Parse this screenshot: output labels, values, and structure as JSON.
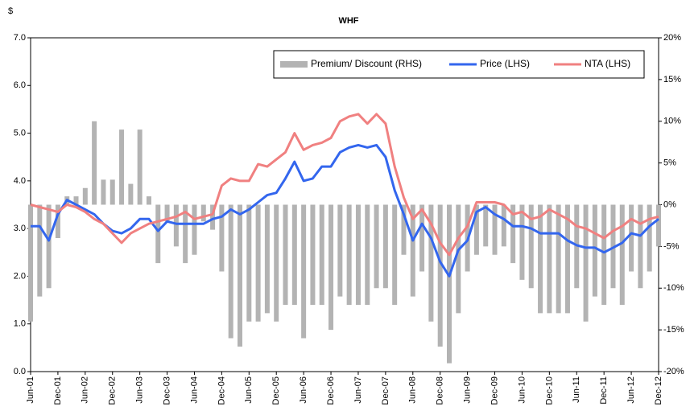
{
  "chart_data": {
    "type": "combo",
    "title": "WHF",
    "y_unit": "$",
    "categories": [
      "Jun-01",
      null,
      null,
      "Dec-01",
      null,
      null,
      "Jun-02",
      null,
      null,
      "Dec-02",
      null,
      null,
      "Jun-03",
      null,
      null,
      "Dec-03",
      null,
      null,
      "Jun-04",
      null,
      null,
      "Dec-04",
      null,
      null,
      "Jun-05",
      null,
      null,
      "Dec-05",
      null,
      null,
      "Jun-06",
      null,
      null,
      "Dec-06",
      null,
      null,
      "Jun-07",
      null,
      null,
      "Dec-07",
      null,
      null,
      "Jun-08",
      null,
      null,
      "Dec-08",
      null,
      null,
      "Jun-09",
      null,
      null,
      "Dec-09",
      null,
      null,
      "Jun-10",
      null,
      null,
      "Dec-10",
      null,
      null,
      "Jun-11",
      null,
      null,
      "Dec-11",
      null,
      null,
      "Jun-12",
      null,
      null,
      "Dec-12"
    ],
    "series": [
      {
        "name": "Premium/ Discount (RHS)",
        "type": "bar",
        "axis": "y2",
        "color": "#b3b3b3",
        "values": [
          -14,
          -11,
          -10,
          -4,
          1,
          1,
          2,
          10,
          3,
          3,
          9,
          2.5,
          9,
          1,
          -7,
          -2,
          -5,
          -7,
          -6,
          -2,
          -3,
          -8,
          -16,
          -17,
          -14,
          -14,
          -13,
          -14,
          -12,
          -12,
          -16,
          -12,
          -12,
          -15,
          -11,
          -12,
          -12,
          -12,
          -10,
          -10,
          -12,
          -6,
          -11,
          -8,
          -14,
          -17,
          -19,
          -13,
          -8,
          -6,
          -5,
          -6,
          -5,
          -7,
          -9,
          -10,
          -13,
          -13,
          -13,
          -13,
          -10,
          -14,
          -11,
          -12,
          -10,
          -12,
          -8,
          -10,
          -8,
          -5
        ]
      },
      {
        "name": "Price (LHS)",
        "type": "line",
        "color": "#3366ee",
        "values": [
          3.05,
          3.05,
          2.75,
          3.3,
          3.6,
          3.5,
          3.4,
          3.3,
          3.1,
          2.95,
          2.9,
          3.0,
          3.2,
          3.2,
          2.95,
          3.15,
          3.1,
          3.1,
          3.1,
          3.1,
          3.2,
          3.25,
          3.4,
          3.3,
          3.4,
          3.55,
          3.7,
          3.75,
          4.05,
          4.4,
          4.0,
          4.05,
          4.3,
          4.3,
          4.6,
          4.7,
          4.75,
          4.7,
          4.75,
          4.5,
          3.8,
          3.3,
          2.75,
          3.1,
          2.8,
          2.3,
          2.0,
          2.55,
          2.75,
          3.35,
          3.45,
          3.3,
          3.2,
          3.05,
          3.05,
          3.0,
          2.9,
          2.9,
          2.9,
          2.75,
          2.65,
          2.6,
          2.6,
          2.5,
          2.6,
          2.7,
          2.9,
          2.85,
          3.05,
          3.2
        ]
      },
      {
        "name": "NTA (LHS)",
        "type": "line",
        "color": "#f08080",
        "values": [
          3.5,
          3.45,
          3.4,
          3.35,
          3.5,
          3.45,
          3.35,
          3.2,
          3.1,
          2.9,
          2.7,
          2.9,
          3.0,
          3.1,
          3.15,
          3.2,
          3.25,
          3.35,
          3.2,
          3.25,
          3.3,
          3.9,
          4.05,
          4.0,
          4.0,
          4.35,
          4.3,
          4.45,
          4.6,
          5.0,
          4.65,
          4.75,
          4.8,
          4.9,
          5.25,
          5.35,
          5.4,
          5.2,
          5.4,
          5.2,
          4.3,
          3.65,
          3.2,
          3.4,
          3.1,
          2.7,
          2.45,
          2.8,
          3.05,
          3.55,
          3.55,
          3.55,
          3.5,
          3.3,
          3.35,
          3.2,
          3.25,
          3.4,
          3.3,
          3.2,
          3.05,
          3.0,
          2.9,
          2.8,
          2.95,
          3.05,
          3.2,
          3.1,
          3.2,
          3.25
        ]
      }
    ],
    "ylim": [
      0,
      7
    ],
    "yticks": [
      {
        "value": 0,
        "label": "0.0"
      },
      {
        "value": 1,
        "label": "1.0"
      },
      {
        "value": 2,
        "label": "2.0"
      },
      {
        "value": 3,
        "label": "3.0"
      },
      {
        "value": 4,
        "label": "4.0"
      },
      {
        "value": 5,
        "label": "5.0"
      },
      {
        "value": 6,
        "label": "6.0"
      },
      {
        "value": 7,
        "label": "7.0"
      }
    ],
    "y2lim": [
      -20,
      20
    ],
    "y2ticks": [
      {
        "value": -20,
        "label": "-20%"
      },
      {
        "value": -15,
        "label": "-15%"
      },
      {
        "value": -10,
        "label": "-10%"
      },
      {
        "value": -5,
        "label": "-5%"
      },
      {
        "value": 0,
        "label": "0%"
      },
      {
        "value": 5,
        "label": "5%"
      },
      {
        "value": 10,
        "label": "10%"
      },
      {
        "value": 15,
        "label": "15%"
      },
      {
        "value": 20,
        "label": "20%"
      }
    ],
    "legend": "top-right"
  }
}
